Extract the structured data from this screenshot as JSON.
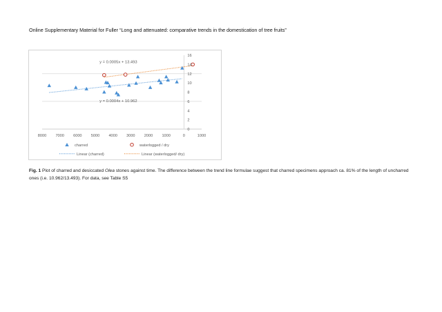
{
  "header": {
    "text": "Online Supplementary Material for Fuller “Long and attenuated: comparative trends in the domestication of tree fruits”"
  },
  "caption": {
    "label": "Fig. 1",
    "part1": " Plot of charred and desiccated ",
    "italic": "Olea",
    "part2": " stones against time. The difference between the trend line formulae suggest that charred specimens approach ca. 81% of the length of uncharred ones (i.e. 10.962/13.493). For data, see Table S5"
  },
  "chart_data": {
    "type": "scatter",
    "xlim": [
      -8000,
      1000
    ],
    "ylim": [
      0,
      16
    ],
    "x_ticks": [
      {
        "value": -8000,
        "label": "8000"
      },
      {
        "value": -7000,
        "label": "7000"
      },
      {
        "value": -6000,
        "label": "6000"
      },
      {
        "value": -5000,
        "label": "5000"
      },
      {
        "value": -4000,
        "label": "4000"
      },
      {
        "value": -3000,
        "label": "3000"
      },
      {
        "value": -2000,
        "label": "2000"
      },
      {
        "value": -1000,
        "label": "1000"
      },
      {
        "value": 0,
        "label": "0"
      },
      {
        "value": 1000,
        "label": "1000"
      }
    ],
    "y_ticks": [
      {
        "value": 0,
        "label": "0"
      },
      {
        "value": 2,
        "label": "2"
      },
      {
        "value": 4,
        "label": "4"
      },
      {
        "value": 6,
        "label": "6"
      },
      {
        "value": 8,
        "label": "8"
      },
      {
        "value": 10,
        "label": "10"
      },
      {
        "value": 12,
        "label": "12"
      },
      {
        "value": 14,
        "label": "14"
      },
      {
        "value": 16,
        "label": "16"
      }
    ],
    "y_gridlines": [
      6,
      12
    ],
    "series": [
      {
        "name": "charred",
        "marker": "triangle",
        "color": "#4a90d4",
        "points": [
          {
            "x": -7600,
            "y": 9.4
          },
          {
            "x": -6100,
            "y": 9.0
          },
          {
            "x": -5500,
            "y": 8.7
          },
          {
            "x": -4500,
            "y": 8.0
          },
          {
            "x": -4400,
            "y": 10.1
          },
          {
            "x": -4300,
            "y": 10.0
          },
          {
            "x": -4200,
            "y": 9.3
          },
          {
            "x": -3800,
            "y": 7.8
          },
          {
            "x": -3700,
            "y": 7.4
          },
          {
            "x": -3100,
            "y": 9.5
          },
          {
            "x": -2700,
            "y": 9.9
          },
          {
            "x": -2600,
            "y": 11.3
          },
          {
            "x": -1900,
            "y": 9.0
          },
          {
            "x": -1400,
            "y": 10.5
          },
          {
            "x": -1300,
            "y": 10.0
          },
          {
            "x": -1000,
            "y": 11.3
          },
          {
            "x": -900,
            "y": 10.6
          },
          {
            "x": -400,
            "y": 10.2
          },
          {
            "x": -100,
            "y": 13.2
          }
        ]
      },
      {
        "name": "waterlogged / dry",
        "marker": "circle",
        "color": "#c0392b",
        "points": [
          {
            "x": -4500,
            "y": 11.7
          },
          {
            "x": -3300,
            "y": 11.8
          },
          {
            "x": 500,
            "y": 14.0
          }
        ]
      }
    ],
    "trendlines": [
      {
        "name": "Linear (charred)",
        "color": "#4a90d4",
        "equation": "y = 0.0004x + 10.962",
        "slope": 0.0004,
        "intercept": 10.962,
        "x_range": [
          -7600,
          -100
        ]
      },
      {
        "name": "Linear (waterlogged / dry)",
        "color": "#e67e22",
        "equation": "y = 0.0005x + 13.493",
        "slope": 0.0005,
        "intercept": 13.493,
        "x_range": [
          -4500,
          500
        ]
      }
    ],
    "legend": [
      {
        "label": "charred",
        "kind": "triangle",
        "color": "#4a90d4"
      },
      {
        "label": "waterlogged / dry",
        "kind": "circle",
        "color": "#c0392b"
      },
      {
        "label": "Linear (charred)",
        "kind": "dotted",
        "color": "#4a90d4"
      },
      {
        "label": "Linear (waterlogged/ dry)",
        "kind": "dotted",
        "color": "#e67e22"
      }
    ],
    "legend_position": "bottom"
  }
}
